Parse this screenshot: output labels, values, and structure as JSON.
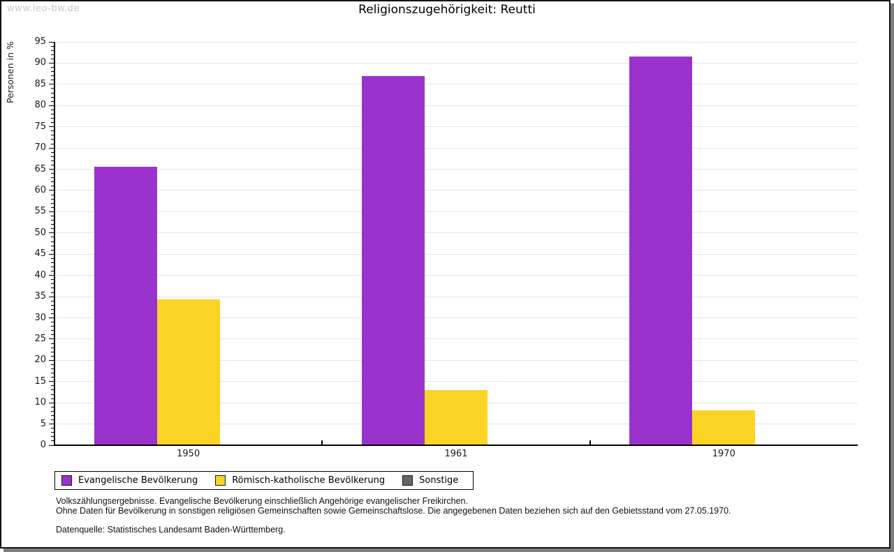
{
  "watermark": "www.leo-bw.de",
  "title": "Religionszugehörigkeit: Reutti",
  "chart_data": {
    "type": "bar",
    "title": "Religionszugehörigkeit: Reutti",
    "xlabel": "",
    "ylabel": "Personen in %",
    "categories": [
      "1950",
      "1961",
      "1970"
    ],
    "series": [
      {
        "name": "Evangelische Bevölkerung",
        "color": "#9933cc",
        "values": [
          65.6,
          87.0,
          91.5
        ]
      },
      {
        "name": "Römisch-katholische Bevölkerung",
        "color": "#fbd324",
        "values": [
          34.4,
          13.0,
          8.3
        ]
      },
      {
        "name": "Sonstige",
        "color": "#666666",
        "values": [
          0,
          0,
          0
        ]
      }
    ],
    "ylim": [
      0,
      95
    ],
    "y_major_step": 5,
    "y_minor_step": 1,
    "grid": true,
    "gridline_color": "#e4e4e4",
    "axis_color": "#000000",
    "legend_position": "bottom"
  },
  "footnotes": {
    "line1": "Volkszählungsergebnisse. Evangelische Bevölkerung einschließlich Angehörige evangelischer Freikirchen.",
    "line2": "Ohne Daten für Bevölkerung in sonstigen religiösen Gemeinschaften sowie Gemeinschaftslose. Die angegebenen Daten beziehen sich auf den Gebietsstand vom 27.05.1970.",
    "source": "Datenquelle: Statistisches Landesamt Baden-Württemberg."
  }
}
